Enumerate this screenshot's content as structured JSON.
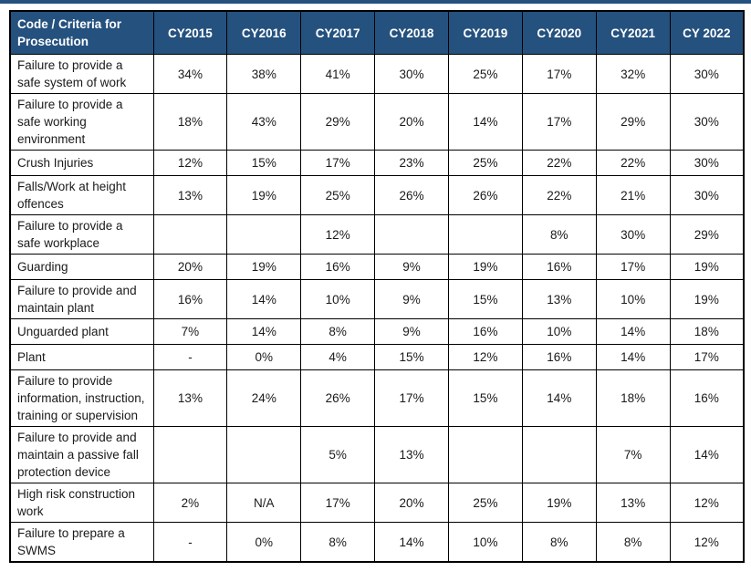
{
  "colors": {
    "header_bg": "#25517E",
    "header_fg": "#ffffff",
    "grid_border": "#000000",
    "body_text": "#1a1a1a"
  },
  "table": {
    "header": {
      "criteria_label": "Code / Criteria for Prosecution",
      "year_columns": [
        "CY2015",
        "CY2016",
        "CY2017",
        "CY2018",
        "CY2019",
        "CY2020",
        "CY2021",
        "CY 2022"
      ]
    },
    "rows": [
      {
        "criteria": "Failure to provide a safe system of work",
        "values": [
          "34%",
          "38%",
          "41%",
          "30%",
          "25%",
          "17%",
          "32%",
          "30%"
        ]
      },
      {
        "criteria": "Failure to provide a safe working environment",
        "values": [
          "18%",
          "43%",
          "29%",
          "20%",
          "14%",
          "17%",
          "29%",
          "30%"
        ]
      },
      {
        "criteria": "Crush Injuries",
        "values": [
          "12%",
          "15%",
          "17%",
          "23%",
          "25%",
          "22%",
          "22%",
          "30%"
        ]
      },
      {
        "criteria": "Falls/Work at height offences",
        "values": [
          "13%",
          "19%",
          "25%",
          "26%",
          "26%",
          "22%",
          "21%",
          "30%"
        ]
      },
      {
        "criteria": "Failure to provide a safe workplace",
        "values": [
          "",
          "",
          "12%",
          "",
          "",
          "8%",
          "30%",
          "29%"
        ]
      },
      {
        "criteria": "Guarding",
        "values": [
          "20%",
          "19%",
          "16%",
          "9%",
          "19%",
          "16%",
          "17%",
          "19%"
        ]
      },
      {
        "criteria": "Failure to provide and maintain plant",
        "values": [
          "16%",
          "14%",
          "10%",
          "9%",
          "15%",
          "13%",
          "10%",
          "19%"
        ]
      },
      {
        "criteria": "Unguarded plant",
        "values": [
          "7%",
          "14%",
          "8%",
          "9%",
          "16%",
          "10%",
          "14%",
          "18%"
        ]
      },
      {
        "criteria": "Plant",
        "values": [
          "-",
          "0%",
          "4%",
          "15%",
          "12%",
          "16%",
          "14%",
          "17%"
        ]
      },
      {
        "criteria": "Failure to provide information, instruction, training or supervision",
        "values": [
          "13%",
          "24%",
          "26%",
          "17%",
          "15%",
          "14%",
          "18%",
          "16%"
        ]
      },
      {
        "criteria": "Failure to provide and maintain a passive fall protection device",
        "values": [
          "",
          "",
          "5%",
          "13%",
          "",
          "",
          "7%",
          "14%"
        ]
      },
      {
        "criteria": "High risk construction work",
        "values": [
          "2%",
          "N/A",
          "17%",
          "20%",
          "25%",
          "19%",
          "13%",
          "12%"
        ]
      },
      {
        "criteria": "Failure to prepare a SWMS",
        "values": [
          "-",
          "0%",
          "8%",
          "14%",
          "10%",
          "8%",
          "8%",
          "12%"
        ]
      }
    ]
  }
}
